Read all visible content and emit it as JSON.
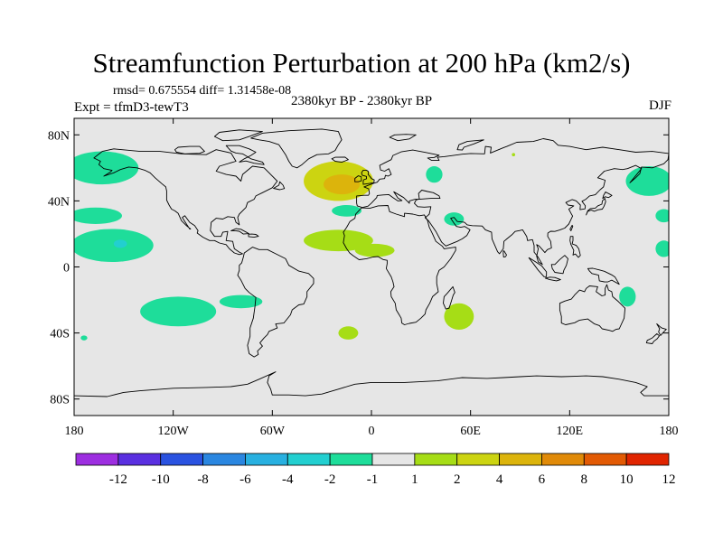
{
  "title": "Streamfunction Perturbation at 200 hPa (km2/s)",
  "stats": "rmsd= 0.675554 diff= 1.31458e-08",
  "experiment": "Expt = tfmD3-tewT3",
  "period": "2380kyr BP - 2380kyr BP",
  "season": "DJF",
  "axes": {
    "lat_ticks": [
      {
        "value": 80,
        "label": "80N"
      },
      {
        "value": 40,
        "label": "40N"
      },
      {
        "value": 0,
        "label": "0"
      },
      {
        "value": -40,
        "label": "40S"
      },
      {
        "value": -80,
        "label": "80S"
      }
    ],
    "lon_ticks": [
      {
        "value": -180,
        "label": "180"
      },
      {
        "value": -120,
        "label": "120W"
      },
      {
        "value": -60,
        "label": "60W"
      },
      {
        "value": 0,
        "label": "0"
      },
      {
        "value": 60,
        "label": "60E"
      },
      {
        "value": 120,
        "label": "120E"
      },
      {
        "value": 180,
        "label": "180"
      }
    ]
  },
  "chart_data": {
    "type": "heatmap",
    "projection": "cylindrical-equidistant",
    "lon_range": [
      -180,
      180
    ],
    "lat_range": [
      -90,
      90
    ],
    "levels": [
      -12,
      -10,
      -8,
      -6,
      -4,
      -2,
      -1,
      1,
      2,
      4,
      6,
      8,
      10,
      12
    ],
    "level_labels": [
      "-12",
      "-10",
      "-8",
      "-6",
      "-4",
      "-2",
      "-1",
      "1",
      "2",
      "4",
      "6",
      "8",
      "10",
      "12"
    ],
    "colors": [
      "#9d2ee0",
      "#5a2fe0",
      "#2a52e0",
      "#2a86e0",
      "#28b0e0",
      "#22cfd0",
      "#1edd9a",
      "#e6e6e6",
      "#a6dd16",
      "#ccd411",
      "#dcb40c",
      "#e08a08",
      "#e25a04",
      "#e02400"
    ],
    "background_color": "#e6e6e6",
    "coast_color": "#000000",
    "anomalies": [
      {
        "name": "north-pacific-west-low",
        "lon": -163,
        "lat": 60,
        "rlon": 22,
        "rlat": 10,
        "value": -1.5
      },
      {
        "name": "north-pacific-east-low",
        "lon": 168,
        "lat": 52,
        "rlon": 14,
        "rlat": 9,
        "value": -1.5
      },
      {
        "name": "subtropical-pacific-low",
        "lon": -167,
        "lat": 31,
        "rlon": 16,
        "rlat": 5,
        "value": -1.5
      },
      {
        "name": "west-pacific-low",
        "lon": 177,
        "lat": 31,
        "rlon": 5,
        "rlat": 4,
        "value": -1.5
      },
      {
        "name": "equatorial-pacific-low",
        "lon": -157,
        "lat": 13,
        "rlon": 25,
        "rlat": 10,
        "value": -1.8
      },
      {
        "name": "equatorial-pacific-core",
        "lon": -152,
        "lat": 14,
        "rlon": 4,
        "rlat": 2.5,
        "value": -2.5
      },
      {
        "name": "west-pacific-equatorial-low",
        "lon": 177,
        "lat": 11,
        "rlon": 5,
        "rlat": 5,
        "value": -1.5
      },
      {
        "name": "south-america-low",
        "lon": -117,
        "lat": -27,
        "rlon": 23,
        "rlat": 9,
        "value": -1.5
      },
      {
        "name": "south-atlantic-low",
        "lon": -79,
        "lat": -21,
        "rlon": 13,
        "rlat": 4,
        "value": -1.5
      },
      {
        "name": "south-pacific-small-low",
        "lon": -174,
        "lat": -43,
        "rlon": 2,
        "rlat": 1.5,
        "value": -1.5
      },
      {
        "name": "north-atlantic-high",
        "lon": -20,
        "lat": 52,
        "rlon": 21,
        "rlat": 12,
        "value": 2.2
      },
      {
        "name": "north-atlantic-core",
        "lon": -18,
        "lat": 50,
        "rlon": 11,
        "rlat": 6,
        "value": 4.2
      },
      {
        "name": "europe-low",
        "lon": -15,
        "lat": 34,
        "rlon": 9,
        "rlat": 3.5,
        "value": -1.5
      },
      {
        "name": "scandinavia-low",
        "lon": 38,
        "lat": 56,
        "rlon": 5,
        "rlat": 5,
        "value": -1.5
      },
      {
        "name": "west-africa-high",
        "lon": -20,
        "lat": 16,
        "rlon": 21,
        "rlat": 6.5,
        "value": 1.5
      },
      {
        "name": "africa-high-east",
        "lon": 2,
        "lat": 10,
        "rlon": 12,
        "rlat": 4,
        "value": 1.5
      },
      {
        "name": "arabia-low",
        "lon": 50,
        "lat": 29,
        "rlon": 6,
        "rlat": 4,
        "value": -1.5
      },
      {
        "name": "south-indian-high",
        "lon": 53,
        "lat": -30,
        "rlon": 9,
        "rlat": 8,
        "value": 1.5
      },
      {
        "name": "south-atlantic-high",
        "lon": -14,
        "lat": -40,
        "rlon": 6,
        "rlat": 4,
        "value": 1.5
      },
      {
        "name": "siberia-small-high",
        "lon": 86,
        "lat": 68,
        "rlon": 1,
        "rlat": 1,
        "value": 1.5
      },
      {
        "name": "australia-low",
        "lon": 155,
        "lat": -18,
        "rlon": 5,
        "rlat": 6,
        "value": -1.5
      }
    ]
  }
}
